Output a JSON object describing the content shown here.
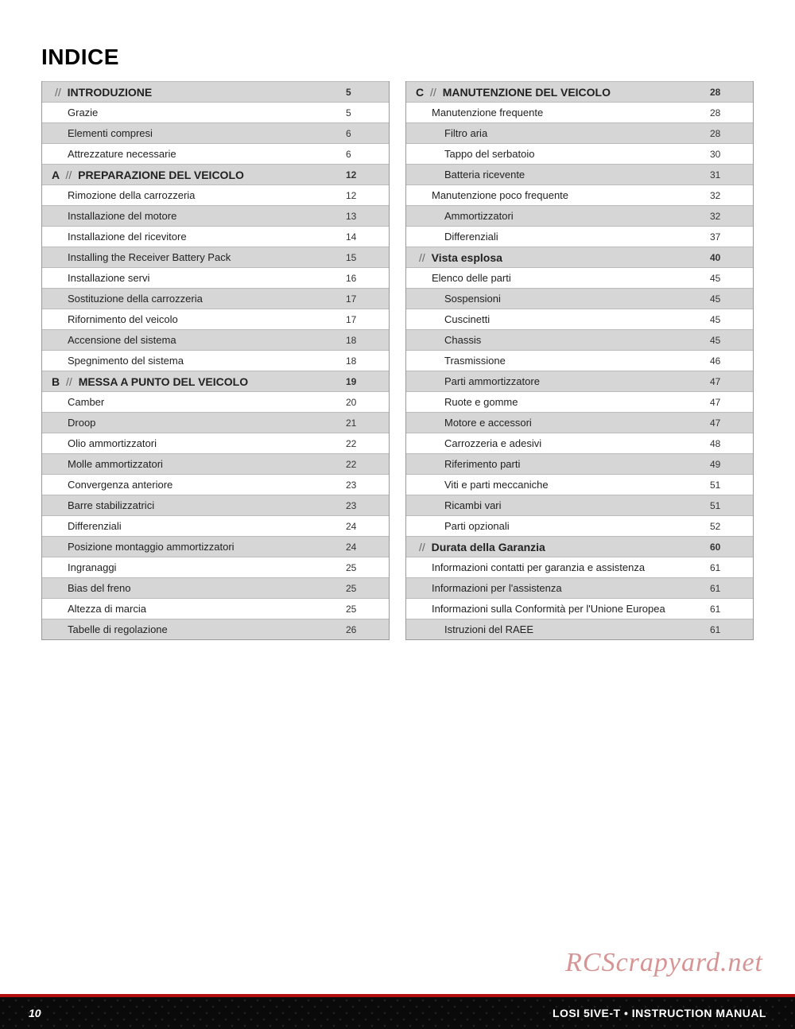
{
  "title": "INDICE",
  "footer": {
    "page_number": "10",
    "product": "LOSI 5IVE-T",
    "separator": "•",
    "doc": "INSTRUCTION MANUAL"
  },
  "watermark": "RCScrapyard.net",
  "colors": {
    "accent_red": "#b30d0d",
    "row_alt_bg": "#d6d6d6",
    "border": "#bbbbbb",
    "text": "#222222",
    "footer_bg": "#0a0a0a"
  },
  "left_column": [
    {
      "type": "section",
      "prefix": "",
      "title": "INTRODUZIONE",
      "page": "5",
      "alt": true
    },
    {
      "type": "item",
      "indent": 1,
      "title": "Grazie",
      "page": "5",
      "alt": false
    },
    {
      "type": "item",
      "indent": 1,
      "title": "Elementi compresi",
      "page": "6",
      "alt": true
    },
    {
      "type": "item",
      "indent": 1,
      "title": "Attrezzature necessarie",
      "page": "6",
      "alt": false
    },
    {
      "type": "section",
      "prefix": "A",
      "title": "PREPARAZIONE DEL VEICOLO",
      "page": "12",
      "alt": true
    },
    {
      "type": "item",
      "indent": 1,
      "title": "Rimozione della carrozzeria",
      "page": "12",
      "alt": false
    },
    {
      "type": "item",
      "indent": 1,
      "title": "Installazione del motore",
      "page": "13",
      "alt": true
    },
    {
      "type": "item",
      "indent": 1,
      "title": "Installazione del ricevitore",
      "page": "14",
      "alt": false
    },
    {
      "type": "item",
      "indent": 1,
      "title": "Installing the Receiver Battery Pack",
      "page": "15",
      "alt": true
    },
    {
      "type": "item",
      "indent": 1,
      "title": "Installazione servi",
      "page": "16",
      "alt": false
    },
    {
      "type": "item",
      "indent": 1,
      "title": "Sostituzione della carrozzeria",
      "page": "17",
      "alt": true
    },
    {
      "type": "item",
      "indent": 1,
      "title": "Rifornimento del veicolo",
      "page": "17",
      "alt": false
    },
    {
      "type": "item",
      "indent": 1,
      "title": "Accensione del sistema",
      "page": "18",
      "alt": true
    },
    {
      "type": "item",
      "indent": 1,
      "title": "Spegnimento del sistema",
      "page": "18",
      "alt": false
    },
    {
      "type": "section",
      "prefix": "B",
      "title": "MESSA A PUNTO DEL VEICOLO",
      "page": "19",
      "alt": true
    },
    {
      "type": "item",
      "indent": 1,
      "title": "Camber",
      "page": "20",
      "alt": false
    },
    {
      "type": "item",
      "indent": 1,
      "title": "Droop",
      "page": "21",
      "alt": true
    },
    {
      "type": "item",
      "indent": 1,
      "title": "Olio ammortizzatori",
      "page": "22",
      "alt": false
    },
    {
      "type": "item",
      "indent": 1,
      "title": "Molle ammortizzatori",
      "page": "22",
      "alt": true
    },
    {
      "type": "item",
      "indent": 1,
      "title": "Convergenza anteriore",
      "page": "23",
      "alt": false
    },
    {
      "type": "item",
      "indent": 1,
      "title": "Barre stabilizzatrici",
      "page": "23",
      "alt": true
    },
    {
      "type": "item",
      "indent": 1,
      "title": "Differenziali",
      "page": "24",
      "alt": false
    },
    {
      "type": "item",
      "indent": 1,
      "title": "Posizione montaggio ammortizzatori",
      "page": "24",
      "alt": true
    },
    {
      "type": "item",
      "indent": 1,
      "title": "Ingranaggi",
      "page": "25",
      "alt": false
    },
    {
      "type": "item",
      "indent": 1,
      "title": "Bias del freno",
      "page": "25",
      "alt": true
    },
    {
      "type": "item",
      "indent": 1,
      "title": "Altezza di marcia",
      "page": "25",
      "alt": false
    },
    {
      "type": "item",
      "indent": 1,
      "title": "Tabelle di regolazione",
      "page": "26",
      "alt": true
    }
  ],
  "right_column": [
    {
      "type": "section",
      "prefix": "C",
      "title": "MANUTENZIONE DEL VEICOLO",
      "page": "28",
      "alt": true
    },
    {
      "type": "item",
      "indent": 1,
      "title": "Manutenzione frequente",
      "page": "28",
      "alt": false
    },
    {
      "type": "item",
      "indent": 2,
      "title": "Filtro aria",
      "page": "28",
      "alt": true
    },
    {
      "type": "item",
      "indent": 2,
      "title": "Tappo del serbatoio",
      "page": "30",
      "alt": false
    },
    {
      "type": "item",
      "indent": 2,
      "title": "Batteria ricevente",
      "page": "31",
      "alt": true
    },
    {
      "type": "item",
      "indent": 1,
      "title": "Manutenzione poco frequente",
      "page": "32",
      "alt": false
    },
    {
      "type": "item",
      "indent": 2,
      "title": "Ammortizzatori",
      "page": "32",
      "alt": true
    },
    {
      "type": "item",
      "indent": 2,
      "title": "Differenziali",
      "page": "37",
      "alt": false
    },
    {
      "type": "section",
      "prefix": "",
      "title": "Vista esplosa",
      "page": "40",
      "alt": true,
      "nocaps": true
    },
    {
      "type": "item",
      "indent": 1,
      "title": "Elenco delle parti",
      "page": "45",
      "alt": false
    },
    {
      "type": "item",
      "indent": 2,
      "title": "Sospensioni",
      "page": "45",
      "alt": true
    },
    {
      "type": "item",
      "indent": 2,
      "title": "Cuscinetti",
      "page": "45",
      "alt": false
    },
    {
      "type": "item",
      "indent": 2,
      "title": "Chassis",
      "page": "45",
      "alt": true
    },
    {
      "type": "item",
      "indent": 2,
      "title": "Trasmissione",
      "page": "46",
      "alt": false
    },
    {
      "type": "item",
      "indent": 2,
      "title": "Parti ammortizzatore",
      "page": "47",
      "alt": true
    },
    {
      "type": "item",
      "indent": 2,
      "title": "Ruote e gomme",
      "page": "47",
      "alt": false
    },
    {
      "type": "item",
      "indent": 2,
      "title": "Motore e accessori",
      "page": "47",
      "alt": true
    },
    {
      "type": "item",
      "indent": 2,
      "title": "Carrozzeria e adesivi",
      "page": "48",
      "alt": false
    },
    {
      "type": "item",
      "indent": 2,
      "title": "Riferimento parti",
      "page": "49",
      "alt": true
    },
    {
      "type": "item",
      "indent": 2,
      "title": "Viti e parti meccaniche",
      "page": "51",
      "alt": false
    },
    {
      "type": "item",
      "indent": 2,
      "title": "Ricambi vari",
      "page": "51",
      "alt": true
    },
    {
      "type": "item",
      "indent": 2,
      "title": "Parti opzionali",
      "page": "52",
      "alt": false
    },
    {
      "type": "section",
      "prefix": "",
      "title": "Durata della Garanzia",
      "page": "60",
      "alt": true,
      "nocaps": true
    },
    {
      "type": "item",
      "indent": 1,
      "title": "Informazioni contatti per garanzia e assistenza",
      "page": "61",
      "alt": false
    },
    {
      "type": "item",
      "indent": 1,
      "title": "Informazioni per l'assistenza",
      "page": "61",
      "alt": true
    },
    {
      "type": "item",
      "indent": 1,
      "title": "Informazioni sulla Conformità per l'Unione Europea",
      "page": "61",
      "alt": false
    },
    {
      "type": "item",
      "indent": 2,
      "title": "Istruzioni del RAEE",
      "page": "61",
      "alt": true
    }
  ]
}
